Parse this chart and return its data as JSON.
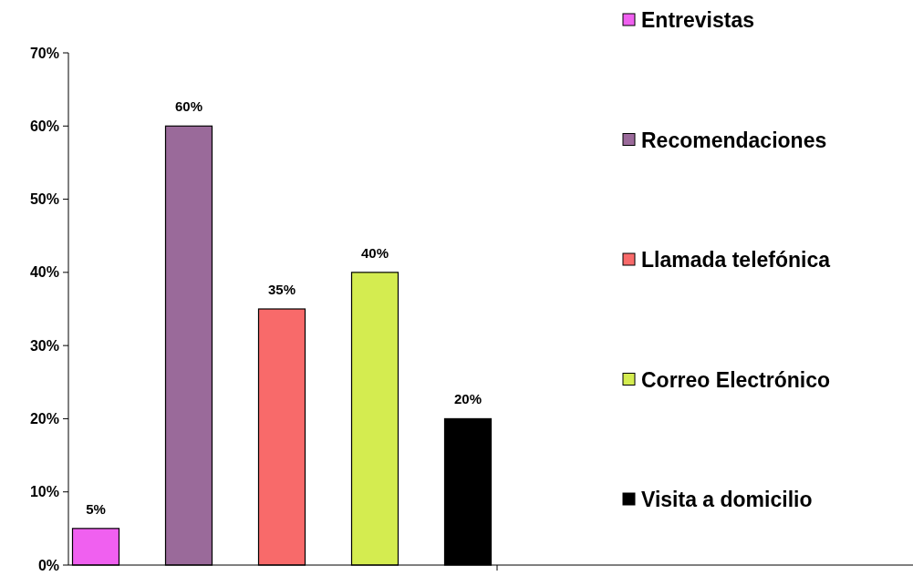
{
  "chart_data": {
    "type": "bar",
    "categories": [
      null,
      null,
      null,
      null,
      null
    ],
    "stacked": true,
    "series": [
      {
        "name": "Entrevistas",
        "color": "#f060f0",
        "values": [
          5,
          null,
          null,
          null,
          null
        ]
      },
      {
        "name": "Recomendaciones",
        "color": "#9a6a9a",
        "values": [
          null,
          60,
          null,
          null,
          null
        ]
      },
      {
        "name": "Llamada telefónica",
        "color": "#f86a6a",
        "values": [
          null,
          null,
          35,
          null,
          null
        ]
      },
      {
        "name": "Correo Electrónico",
        "color": "#d4ec50",
        "values": [
          null,
          null,
          null,
          40,
          null
        ]
      },
      {
        "name": "Visita a domicilio",
        "color": "#000000",
        "values": [
          null,
          null,
          null,
          null,
          20
        ]
      }
    ],
    "ylim": [
      0,
      70
    ],
    "yticks": [
      {
        "value": 0,
        "label": "0%"
      },
      {
        "value": 10,
        "label": "10%"
      },
      {
        "value": 20,
        "label": "20%"
      },
      {
        "value": 30,
        "label": "30%"
      },
      {
        "value": 40,
        "label": "40%"
      },
      {
        "value": 50,
        "label": "50%"
      },
      {
        "value": 60,
        "label": "60%"
      },
      {
        "value": 70,
        "label": "70%"
      }
    ],
    "totals": [
      "5%",
      "60%",
      "35%",
      "40%",
      "20%"
    ],
    "grid": false,
    "legend": "right"
  }
}
